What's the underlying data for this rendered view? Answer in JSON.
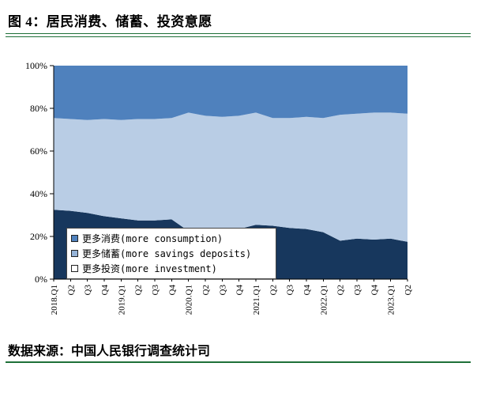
{
  "title": "图 4：居民消费、储蓄、投资意愿",
  "source": "数据来源：中国人民银行调查统计司",
  "colors": {
    "rule_green": "#1E7038",
    "axis": "#000000",
    "legend_border": "#444444",
    "consumption_blue": "#4F81BD",
    "savings_light_blue": "#B9CDE5",
    "investment_navy": "#17375D"
  },
  "chart_data": {
    "type": "area",
    "stacked": true,
    "title": "图 4：居民消费、储蓄、投资意愿",
    "xlabel": "",
    "ylabel": "",
    "ylim": [
      0,
      100
    ],
    "unit": "%",
    "grid": false,
    "legend_position": "inside-bottom-left",
    "yticks": [
      "0%",
      "20%",
      "40%",
      "60%",
      "80%",
      "100%"
    ],
    "categories": [
      "2018.Q1",
      "Q2",
      "Q3",
      "Q4",
      "2019.Q1",
      "Q2",
      "Q3",
      "Q4",
      "2020.Q1",
      "Q2",
      "Q3",
      "Q4",
      "2021.Q1",
      "Q2",
      "Q3",
      "Q4",
      "2022.Q1",
      "Q2",
      "Q3",
      "Q4",
      "2023.Q1",
      "Q2"
    ],
    "series": [
      {
        "id": "consumption",
        "name": "更多消费(more consumption)",
        "fill": "#4F81BD",
        "legend_color": "#4F81BD",
        "stack": "top",
        "values": [
          24.5,
          25,
          25.5,
          25,
          25.5,
          25,
          25,
          24.5,
          22,
          23.5,
          24,
          23.5,
          22,
          24.5,
          24.5,
          24,
          24.5,
          23,
          22.5,
          22,
          22,
          22.5
        ]
      },
      {
        "id": "savings",
        "name": "更多储蓄(more savings deposits)",
        "fill": "#B9CDE5",
        "legend_color": "#95B3D7",
        "stack": "middle",
        "values": [
          43,
          43,
          43.5,
          45.5,
          46,
          47.5,
          47.5,
          47.5,
          55.5,
          52.5,
          52,
          53,
          52.5,
          50.5,
          51.5,
          52.5,
          53.5,
          59,
          58.5,
          59.5,
          59,
          60
        ]
      },
      {
        "id": "investment",
        "name": "更多投资(more investment)",
        "fill": "#17375D",
        "legend_color": "#FFFFFF",
        "stack": "bottom",
        "values": [
          32.5,
          32,
          31,
          29.5,
          28.5,
          27.5,
          27.5,
          28,
          22.5,
          24,
          24,
          23.5,
          25.5,
          25,
          24,
          23.5,
          22,
          18,
          19,
          18.5,
          19,
          17.5
        ]
      }
    ]
  }
}
